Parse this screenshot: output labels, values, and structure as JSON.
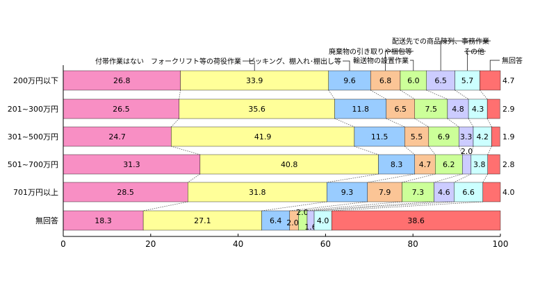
{
  "chart_data": {
    "type": "bar",
    "orientation": "horizontal",
    "stacked": true,
    "xlim": [
      0,
      100
    ],
    "xticks": [
      "0",
      "20",
      "40",
      "60",
      "80",
      "100"
    ],
    "categories": [
      "200万円以下",
      "201~300万円",
      "301~500万円",
      "501~700万円",
      "701万円以上",
      "無回答"
    ],
    "series": [
      {
        "name": "付帯作業はない",
        "color": "#f88fc4",
        "values": [
          26.8,
          26.5,
          24.7,
          31.3,
          28.5,
          18.3
        ]
      },
      {
        "name": "フォークリフト等の荷役作業",
        "color": "#ffff99",
        "values": [
          33.9,
          35.6,
          41.9,
          40.8,
          31.8,
          27.1
        ]
      },
      {
        "name": "ピッキング、棚入れ･棚出し等",
        "color": "#99ccff",
        "values": [
          9.6,
          11.8,
          11.5,
          8.3,
          9.3,
          6.4
        ]
      },
      {
        "name": "廃棄物の引き取りや梱包等",
        "color": "#fbc596",
        "values": [
          6.8,
          6.5,
          5.5,
          4.7,
          7.9,
          2.0
        ]
      },
      {
        "name": "輸送物の設置作業",
        "color": "#ccff99",
        "values": [
          6.0,
          7.5,
          6.9,
          6.2,
          7.3,
          2.0
        ]
      },
      {
        "name": "配送先での商品陳列、事務作業",
        "color": "#ccccff",
        "values": [
          6.5,
          4.8,
          3.3,
          2.0,
          4.6,
          1.6
        ]
      },
      {
        "name": "その他",
        "color": "#ccffff",
        "values": [
          5.7,
          4.3,
          4.2,
          3.8,
          6.6,
          4.0
        ]
      },
      {
        "name": "無回答",
        "color": "#ff7070",
        "values": [
          4.7,
          2.9,
          1.9,
          2.8,
          4.0,
          38.6
        ]
      }
    ],
    "grid": false,
    "legend": "top, callout labels"
  }
}
